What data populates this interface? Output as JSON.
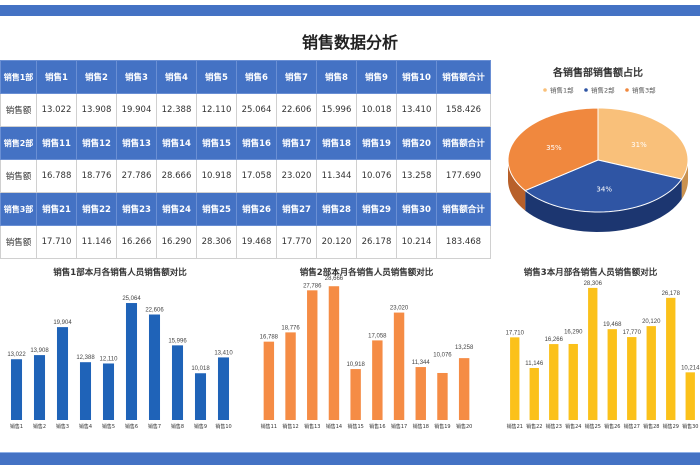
{
  "title": "销售数据分析",
  "table": {
    "sections": [
      {
        "dept": "销售1部",
        "people": [
          "销售1",
          "销售2",
          "销售3",
          "销售4",
          "销售5",
          "销售6",
          "销售7",
          "销售8",
          "销售9",
          "销售10"
        ],
        "total_label": "销售额合计",
        "row_label": "销售额",
        "values": [
          "13.022",
          "13.908",
          "19.904",
          "12.388",
          "12.110",
          "25.064",
          "22.606",
          "15.996",
          "10.018",
          "13.410"
        ],
        "total": "158.426"
      },
      {
        "dept": "销售2部",
        "people": [
          "销售11",
          "销售12",
          "销售13",
          "销售14",
          "销售15",
          "销售16",
          "销售17",
          "销售18",
          "销售19",
          "销售20"
        ],
        "total_label": "销售额合计",
        "row_label": "销售额",
        "values": [
          "16.788",
          "18.776",
          "27.786",
          "28.666",
          "10.918",
          "17.058",
          "23.020",
          "11.344",
          "10.076",
          "13.258"
        ],
        "total": "177.690"
      },
      {
        "dept": "销售3部",
        "people": [
          "销售21",
          "销售22",
          "销售23",
          "销售24",
          "销售25",
          "销售26",
          "销售27",
          "销售28",
          "销售29",
          "销售30"
        ],
        "total_label": "销售额合计",
        "row_label": "销售额",
        "values": [
          "17.710",
          "11.146",
          "16.266",
          "16.290",
          "28.306",
          "19.468",
          "17.770",
          "20.120",
          "26.178",
          "10.214"
        ],
        "total": "183.468"
      }
    ]
  },
  "chart_data": [
    {
      "type": "pie",
      "title": "各销售部销售额占比",
      "categories": [
        "销售1部",
        "销售2部",
        "销售3部"
      ],
      "values": [
        31,
        34,
        35
      ],
      "labels": [
        "31%",
        "34%",
        "35%"
      ],
      "colors": [
        "#f9c07a",
        "#2f55a4",
        "#f0883e"
      ],
      "legend": "top",
      "style": "3d"
    },
    {
      "type": "bar",
      "title": "销售1部本月各销售人员销售额对比",
      "categories": [
        "销售1",
        "销售2",
        "销售3",
        "销售4",
        "销售5",
        "销售6",
        "销售7",
        "销售8",
        "销售9",
        "销售10"
      ],
      "values": [
        13.022,
        13.908,
        19.904,
        12.388,
        12.11,
        25.064,
        22.606,
        15.996,
        10.018,
        13.41
      ],
      "labels": [
        "13,022",
        "13,908",
        "19,904",
        "12,388",
        "12,110",
        "25,064",
        "22,606",
        "15,996",
        "10,018",
        "13,410"
      ],
      "color": "#1f63b8",
      "ylim": [
        0,
        30
      ]
    },
    {
      "type": "bar",
      "title": "销售2部本月各销售人员销售额对比",
      "categories": [
        "销售11",
        "销售12",
        "销售13",
        "销售14",
        "销售15",
        "销售16",
        "销售17",
        "销售18",
        "销售19",
        "销售20"
      ],
      "values": [
        16.788,
        18.776,
        27.786,
        28.666,
        10.918,
        17.058,
        23.02,
        11.344,
        10.076,
        13.258
      ],
      "labels": [
        "16,788",
        "18,776",
        "27,786",
        "28,666",
        "10,918",
        "17,058",
        "23,020",
        "11,344",
        "10,076",
        "13,258"
      ],
      "color": "#f58c45",
      "ylim": [
        0,
        30
      ]
    },
    {
      "type": "bar",
      "title": "销售3本月部各销售人员销售额对比",
      "categories": [
        "销售21",
        "销售22",
        "销售23",
        "销售24",
        "销售25",
        "销售26",
        "销售27",
        "销售28",
        "销售29",
        "销售30"
      ],
      "values": [
        17.71,
        11.146,
        16.266,
        16.29,
        28.306,
        19.468,
        17.77,
        20.12,
        26.178,
        10.214
      ],
      "labels": [
        "17,710",
        "11,146",
        "16,266",
        "16,290",
        "28,306",
        "19,468",
        "17,770",
        "20,120",
        "26,178",
        "10,214"
      ],
      "color": "#fbc11a",
      "ylim": [
        0,
        30
      ]
    }
  ]
}
